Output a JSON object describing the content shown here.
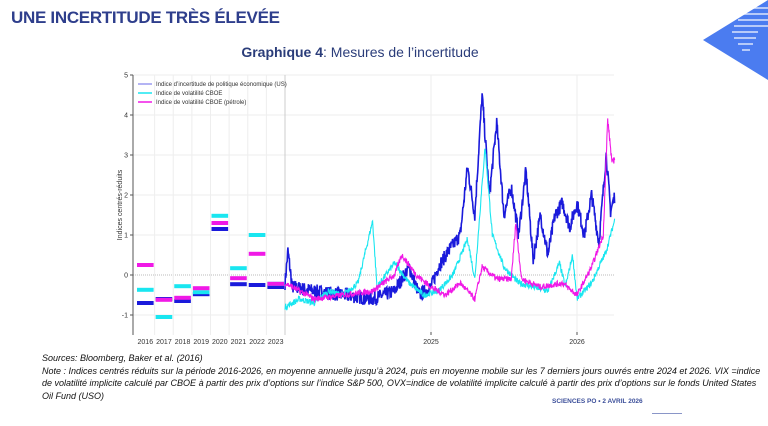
{
  "header": {
    "title": "UNE INCERTITUDE TRÈS ÉLEVÉE",
    "chart_title_bold": "Graphique 4",
    "chart_title_rest": ":  Mesures de l’incertitude"
  },
  "notes": {
    "sources": "Sources: Bloomberg, Baker et al. (2016)",
    "note": "Note : Indices centrés réduits sur la période 2016-2026, en moyenne annuelle jusqu’à 2024, puis en moyenne mobile sur les 7 derniers jours ouvrés entre 2024 et 2026. VIX =indice de volatilité implicite calculé par CBOE à partir des prix d’options sur l’indice S&P 500, OVX=indice de volatilité implicite calculé à partir des prix d’options sur le fonds United States Oil Fund (USO)"
  },
  "footer": "SCIENCES PO • 2 AVRIL 2026",
  "chart_data": {
    "type": "line",
    "title": "Graphique 4: Mesures de l’incertitude",
    "ylabel": "Indices centrés-réduits",
    "ylim": [
      -1.5,
      5
    ],
    "yticks": [
      "-1",
      "0",
      "1",
      "2",
      "3",
      "4",
      "5"
    ],
    "annual_categories": [
      "2016",
      "2017",
      "2018",
      "2019",
      "2020",
      "2021",
      "2022",
      "2023"
    ],
    "daily_ticks": [
      "2025",
      "2026"
    ],
    "legend": [
      "Indice d’incertitude de politique économique (US)",
      "Indice de volatilité CBOE",
      "Indice de volatilité CBOE (pétrole)"
    ],
    "legend_position": "top-left",
    "series": [
      {
        "name": "Indice d’incertitude de politique économique (US)",
        "color": "#1a1adb",
        "annual": [
          -0.7,
          -0.6,
          -0.65,
          -0.48,
          1.15,
          -0.23,
          -0.25,
          -0.3
        ],
        "daily": [
          [
            2024.0,
            -0.2
          ],
          [
            2024.02,
            0.6
          ],
          [
            2024.05,
            -0.3
          ],
          [
            2024.2,
            -0.4
          ],
          [
            2024.4,
            -0.5
          ],
          [
            2024.6,
            -0.6
          ],
          [
            2024.75,
            -0.4
          ],
          [
            2024.85,
            0.2
          ],
          [
            2024.92,
            -0.5
          ],
          [
            2025.0,
            -0.3
          ],
          [
            2025.05,
            0.2
          ],
          [
            2025.12,
            0.6
          ],
          [
            2025.2,
            1.0
          ],
          [
            2025.25,
            2.7
          ],
          [
            2025.3,
            1.5
          ],
          [
            2025.35,
            4.5
          ],
          [
            2025.4,
            2.0
          ],
          [
            2025.45,
            3.8
          ],
          [
            2025.5,
            1.5
          ],
          [
            2025.55,
            2.2
          ],
          [
            2025.6,
            1.0
          ],
          [
            2025.65,
            2.6
          ],
          [
            2025.7,
            0.4
          ],
          [
            2025.75,
            1.5
          ],
          [
            2025.8,
            0.5
          ],
          [
            2025.85,
            1.5
          ],
          [
            2025.9,
            1.8
          ],
          [
            2025.95,
            1.2
          ],
          [
            2026.0,
            1.8
          ],
          [
            2026.05,
            1.0
          ],
          [
            2026.1,
            2.0
          ],
          [
            2026.15,
            0.8
          ],
          [
            2026.2,
            3.0
          ],
          [
            2026.23,
            1.6
          ],
          [
            2026.26,
            2.0
          ]
        ]
      },
      {
        "name": "Indice de volatilité CBOE",
        "color": "#19e6f0",
        "annual": [
          -0.37,
          -1.05,
          -0.28,
          -0.43,
          1.48,
          0.17,
          1.0,
          -0.22
        ],
        "daily": [
          [
            2024.0,
            -0.8
          ],
          [
            2024.1,
            -0.6
          ],
          [
            2024.2,
            -0.7
          ],
          [
            2024.3,
            -0.4
          ],
          [
            2024.4,
            -0.5
          ],
          [
            2024.5,
            -0.2
          ],
          [
            2024.6,
            1.35
          ],
          [
            2024.63,
            -0.3
          ],
          [
            2024.75,
            0.3
          ],
          [
            2024.85,
            -0.2
          ],
          [
            2024.95,
            -0.5
          ],
          [
            2025.05,
            -0.4
          ],
          [
            2025.15,
            0.0
          ],
          [
            2025.25,
            0.9
          ],
          [
            2025.3,
            -0.1
          ],
          [
            2025.37,
            3.2
          ],
          [
            2025.42,
            1.0
          ],
          [
            2025.5,
            0.2
          ],
          [
            2025.6,
            -0.2
          ],
          [
            2025.7,
            -0.3
          ],
          [
            2025.8,
            -0.4
          ],
          [
            2025.88,
            0.3
          ],
          [
            2025.92,
            -0.3
          ],
          [
            2025.97,
            0.5
          ],
          [
            2026.0,
            -0.6
          ],
          [
            2026.1,
            -0.2
          ],
          [
            2026.2,
            0.6
          ],
          [
            2026.26,
            1.4
          ]
        ]
      },
      {
        "name": "Indice de volatilité CBOE (pétrole)",
        "color": "#f019e6",
        "annual": [
          0.25,
          -0.62,
          -0.57,
          -0.33,
          1.3,
          -0.08,
          0.53,
          -0.22
        ],
        "daily": [
          [
            2024.0,
            -0.2
          ],
          [
            2024.2,
            -0.6
          ],
          [
            2024.4,
            -0.5
          ],
          [
            2024.6,
            -0.4
          ],
          [
            2024.75,
            0.0
          ],
          [
            2024.8,
            0.5
          ],
          [
            2024.9,
            0.0
          ],
          [
            2025.0,
            -0.3
          ],
          [
            2025.1,
            -0.5
          ],
          [
            2025.2,
            -0.2
          ],
          [
            2025.3,
            -0.6
          ],
          [
            2025.35,
            0.2
          ],
          [
            2025.45,
            -0.1
          ],
          [
            2025.55,
            -0.1
          ],
          [
            2025.58,
            1.3
          ],
          [
            2025.62,
            -0.1
          ],
          [
            2025.75,
            -0.3
          ],
          [
            2025.9,
            -0.2
          ],
          [
            2026.0,
            -0.5
          ],
          [
            2026.1,
            0.2
          ],
          [
            2026.18,
            1.0
          ],
          [
            2026.21,
            3.9
          ],
          [
            2026.24,
            2.8
          ],
          [
            2026.26,
            2.9
          ]
        ]
      }
    ]
  }
}
